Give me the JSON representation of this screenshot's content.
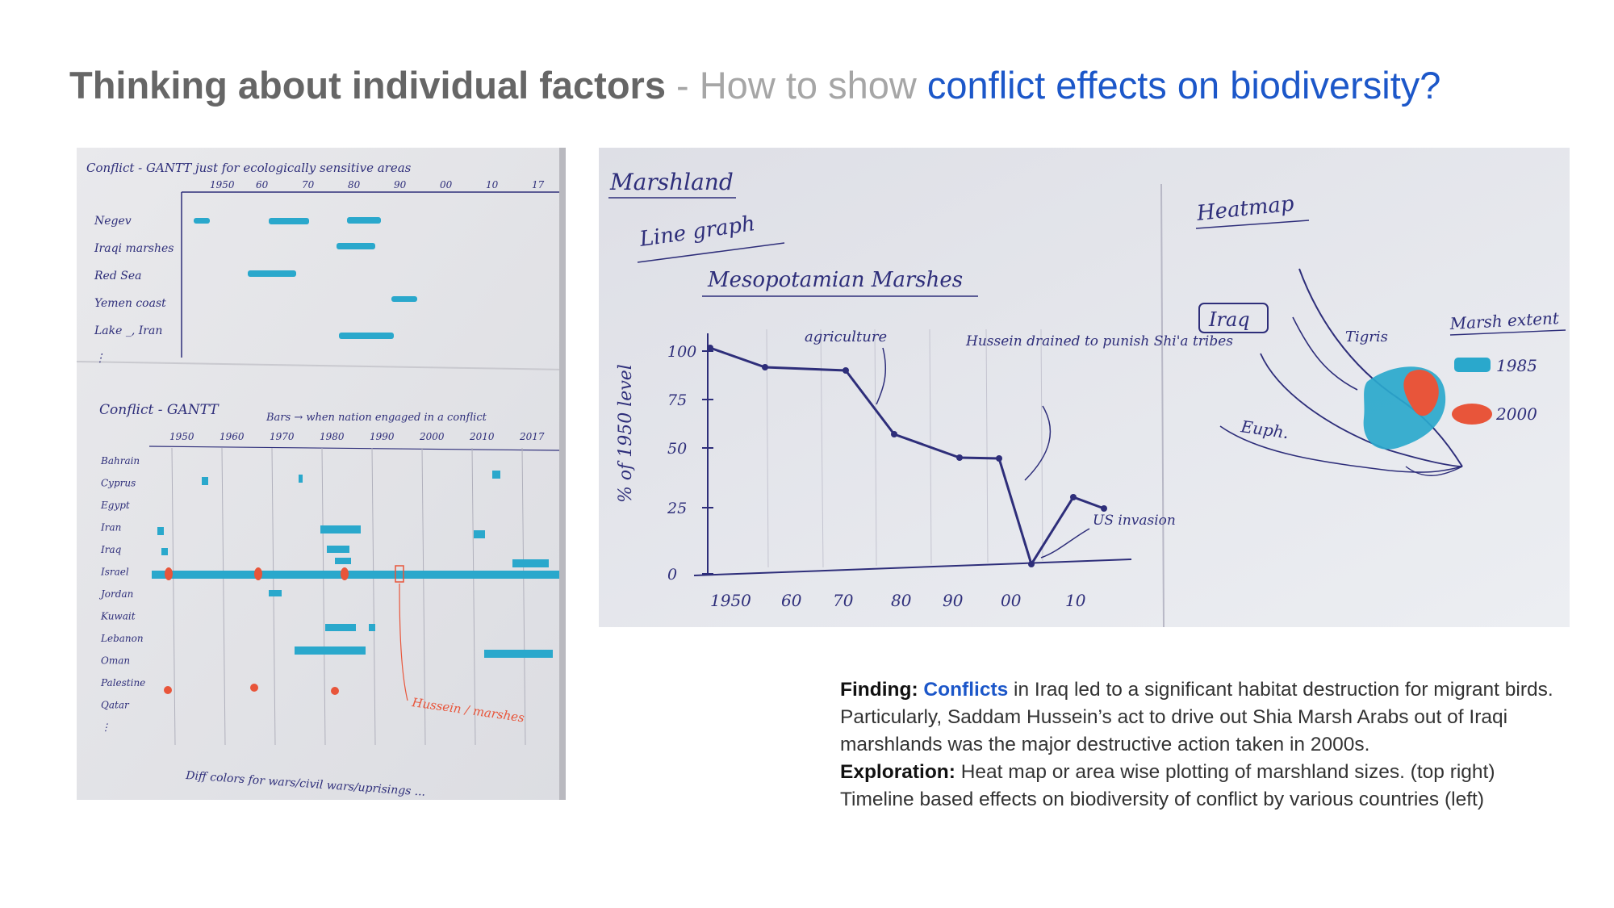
{
  "title": {
    "bold": "Thinking about individual factors",
    "light": " - How to show ",
    "accent": "conflict effects on biodiversity?"
  },
  "colors": {
    "title_gray": "#666666",
    "title_light": "#a6a6a6",
    "accent_blue": "#1c57c9",
    "marker_blue": "#2aa8cc",
    "marker_red": "#e8553a",
    "ink": "#2e2e7a"
  },
  "left_sketch": {
    "chart1": {
      "heading": "Conflict - GANTT just for ecologically sensitive areas",
      "years": [
        "1950",
        "60",
        "70",
        "80",
        "90",
        "00",
        "10",
        "17"
      ],
      "rows": [
        "Negev",
        "Iraqi marshes",
        "Red Sea",
        "Yemen coast",
        "Lake _, Iran",
        "⋮"
      ]
    },
    "chart2": {
      "heading": "Conflict - GANTT",
      "note": "Bars → when nation engaged in a conflict",
      "years": [
        "1950",
        "1960",
        "1970",
        "1980",
        "1990",
        "2000",
        "2010",
        "2017"
      ],
      "rows": [
        "Bahrain",
        "Cyprus",
        "Egypt",
        "Iran",
        "Iraq",
        "Israel",
        "Jordan",
        "Kuwait",
        "Lebanon",
        "Oman",
        "Palestine",
        "Qatar",
        "⋮"
      ],
      "annotation": "Hussein / marshes",
      "footer": "Diff colors for wars/civil wars/uprisings ..."
    }
  },
  "right_sketch": {
    "heading": "Marshland",
    "line_graph": {
      "label": "Line graph",
      "title": "Mesopotamian Marshes",
      "ylabel": "% of 1950 level",
      "yticks": [
        "100",
        "75",
        "50",
        "25",
        "0"
      ],
      "xticks": [
        "1950",
        "60",
        "70",
        "80",
        "90",
        "00",
        "10"
      ],
      "annotations": [
        "agriculture",
        "Hussein drained to punish Shi'a tribes",
        "US invasion"
      ]
    },
    "heatmap": {
      "label": "Heatmap",
      "map_label": "Iraq",
      "rivers": [
        "Tigris",
        "Euph."
      ],
      "legend_title": "Marsh extent",
      "legend": [
        {
          "label": "1985",
          "color": "#2aa8cc"
        },
        {
          "label": "2000",
          "color": "#e8553a"
        }
      ]
    }
  },
  "finding": {
    "finding_label": "Finding:",
    "conflicts_word": "Conflicts",
    "finding_text": " in Iraq led to a significant habitat destruction for migrant birds. Particularly, Saddam Hussein’s act to drive out Shia Marsh Arabs out of Iraqi marshlands was the major destructive action taken in 2000s.",
    "exploration_label": "Exploration:",
    "exploration_text": " Heat map or area wise plotting of marshland sizes. (top right) Timeline based effects on biodiversity of conflict by various countries (left)"
  }
}
